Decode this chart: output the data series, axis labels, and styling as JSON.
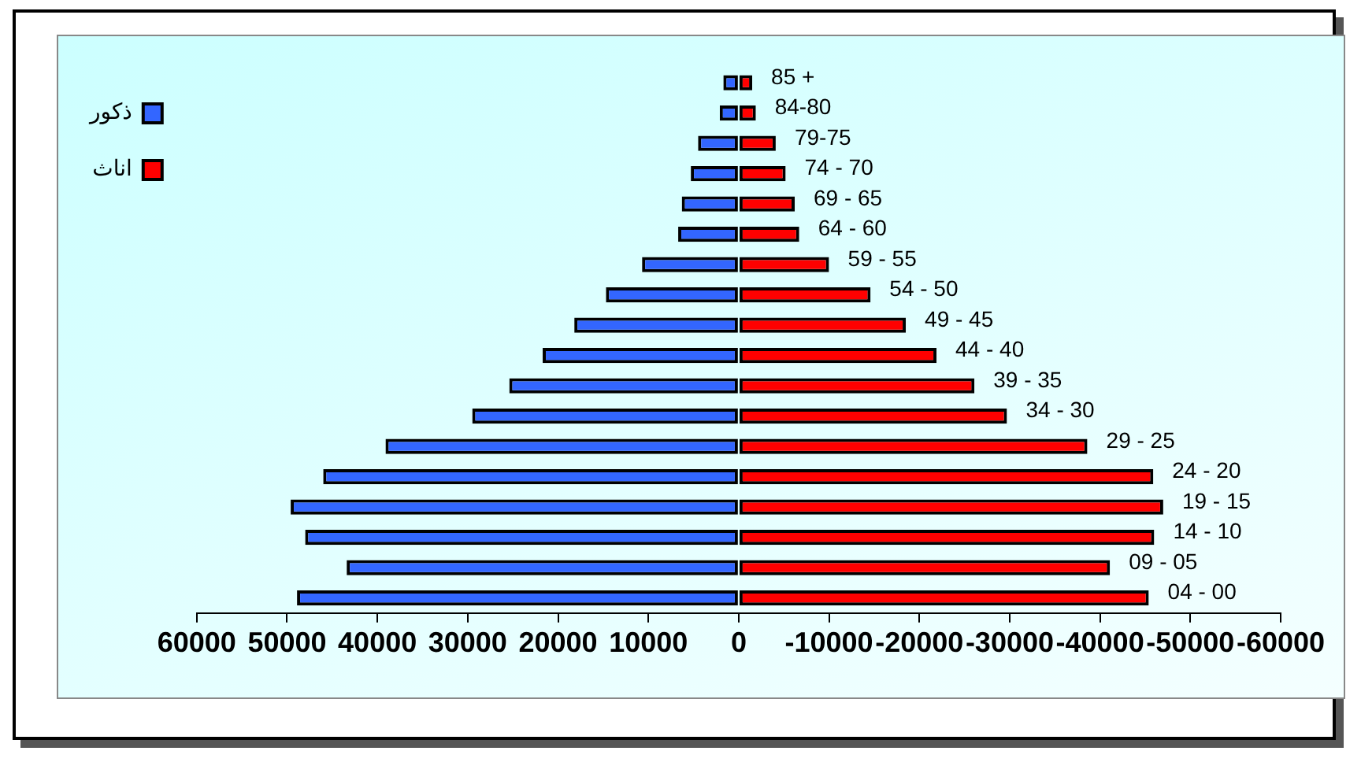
{
  "chart_data": {
    "type": "bar",
    "orientation": "horizontal",
    "stacked": true,
    "categories": [
      "85 +",
      "84-80",
      "79-75",
      "74 - 70",
      "69 - 65",
      "64 - 60",
      "59 - 55",
      "54 - 50",
      "49 - 45",
      "44 - 40",
      "39 - 35",
      "34 - 30",
      "29 - 25",
      "24 - 20",
      "19 - 15",
      "14 - 10",
      "09 - 05",
      "04 - 00"
    ],
    "series": [
      {
        "name": "ذكور",
        "color": "#3366ff",
        "values": [
          1700,
          2100,
          4500,
          5300,
          6300,
          6700,
          10700,
          14700,
          18200,
          21700,
          25400,
          29500,
          39100,
          46000,
          49600,
          48000,
          43400,
          48900
        ]
      },
      {
        "name": "اناث",
        "color": "#ff0000",
        "values": [
          -1500,
          -1900,
          -4100,
          -5200,
          -6200,
          -6700,
          -10000,
          -14600,
          -18500,
          -21900,
          -26100,
          -29700,
          -38600,
          -45900,
          -47000,
          -46000,
          -41100,
          -45400
        ]
      }
    ],
    "xlim": [
      60000,
      -60000
    ],
    "xticks": [
      60000,
      50000,
      40000,
      30000,
      20000,
      10000,
      0,
      -10000,
      -20000,
      -30000,
      -40000,
      -50000,
      -60000
    ],
    "grid": false,
    "legend": "left"
  }
}
